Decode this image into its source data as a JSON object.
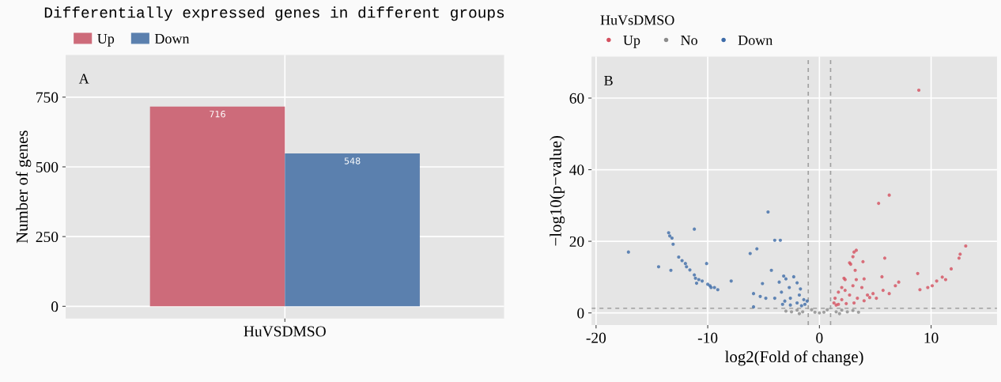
{
  "chart_data": [
    {
      "type": "bar",
      "title": "Differentially expressed genes in different groups",
      "ylabel": "Number of genes",
      "categories": [
        "HuVSDMSO"
      ],
      "series": [
        {
          "name": "Up",
          "color": "#cd6b7a",
          "values": [
            716
          ]
        },
        {
          "name": "Down",
          "color": "#5b80ae",
          "values": [
            548
          ]
        }
      ],
      "data_labels": true,
      "ylim": [
        -44,
        901
      ],
      "yticks": [
        0,
        250,
        500,
        750
      ],
      "grid": true,
      "legend": "top",
      "annotations": [
        "A"
      ]
    },
    {
      "type": "scatter",
      "xlabel": "log2(Fold of change)",
      "ylabel": "−log10(p−value)",
      "legend_title": "HuVsDMSO",
      "series": [
        {
          "name": "Up",
          "color": "#d4505f",
          "x": [
            8.9,
            6.25,
            5.3,
            5.85,
            3.3,
            3.1,
            3.0,
            2.7,
            2.8,
            3.9,
            3.2,
            2.2,
            2.3,
            3.3,
            4.0,
            2.0,
            3.0,
            3.8,
            1.7,
            2.3,
            1.4,
            2.0,
            2.7,
            3.4,
            4.3,
            4.8,
            5.6,
            5.7,
            6.25,
            7.1,
            1.3,
            1.7,
            2.4,
            3.1,
            4.0,
            5.1,
            1.5,
            8.8,
            9.0,
            9.7,
            10.1,
            10.5,
            11.0,
            11.3,
            11.8,
            12.5,
            12.6,
            13.1,
            6.8,
            4.5
          ],
          "values": [
            62.2,
            32.9,
            30.6,
            15.3,
            17.5,
            17.0,
            15.7,
            14.0,
            13.6,
            14.3,
            11.9,
            9.7,
            9.3,
            9.3,
            9.5,
            7.1,
            7.6,
            7.1,
            5.8,
            6.3,
            4.1,
            3.7,
            5.0,
            4.1,
            5.0,
            5.4,
            10.1,
            6.3,
            5.4,
            8.6,
            2.8,
            2.4,
            2.6,
            2.8,
            3.4,
            4.1,
            2.2,
            11.0,
            6.5,
            7.1,
            7.6,
            8.9,
            10.0,
            9.3,
            12.3,
            15.3,
            16.4,
            18.7,
            7.6,
            4.3
          ]
        },
        {
          "name": "No",
          "color": "#8c8c8c",
          "x": [
            0,
            0.4,
            -0.4,
            0.7,
            -0.7,
            1.5,
            -1.5,
            2.0,
            -2.0,
            2.5,
            -2.5,
            3.0,
            -3.0,
            3.5,
            1.8,
            -1.8
          ],
          "values": [
            0,
            0.2,
            0.2,
            0.9,
            0.9,
            0.3,
            0.3,
            0.8,
            0.8,
            0.3,
            0.3,
            0.7,
            0.5,
            0.2,
            -0.2,
            -0.2
          ]
        },
        {
          "name": "Down",
          "color": "#3d6ba8",
          "x": [
            -17.1,
            -14.4,
            -13.3,
            -13.5,
            -13.4,
            -13.2,
            -13.1,
            -11.2,
            -12.6,
            -12.3,
            -12.0,
            -11.9,
            -11.6,
            -11.2,
            -11.1,
            -11.0,
            -10.8,
            -10.5,
            -10.1,
            -10.0,
            -9.8,
            -9.7,
            -9.4,
            -9.1,
            -7.9,
            -5.9,
            -6.2,
            -5.6,
            -5.9,
            -5.1,
            -5.3,
            -4.8,
            -4.6,
            -4.0,
            -3.5,
            -4.3,
            -3.2,
            -3.6,
            -3.0,
            -2.3,
            -4.0,
            -3.4,
            -2.7,
            -2.0,
            -1.7,
            -3.1,
            -2.6,
            -1.8,
            -1.4,
            -1.3,
            -2.6,
            -2.0,
            -1.6,
            -3.3,
            -1.1
          ],
          "values": [
            17.0,
            12.9,
            11.9,
            22.4,
            21.5,
            20.9,
            19.2,
            23.4,
            15.6,
            14.6,
            13.8,
            12.9,
            12.0,
            10.6,
            9.7,
            8.3,
            9.3,
            8.9,
            13.8,
            8.0,
            7.6,
            7.1,
            7.1,
            6.5,
            8.9,
            5.4,
            16.6,
            17.9,
            1.7,
            8.2,
            4.6,
            4.1,
            28.2,
            20.3,
            20.3,
            11.9,
            10.3,
            8.6,
            9.5,
            10.1,
            4.1,
            5.8,
            7.1,
            8.4,
            6.7,
            3.3,
            4.1,
            5.0,
            3.7,
            2.4,
            2.2,
            2.8,
            2.0,
            2.4,
            3.3
          ]
        }
      ],
      "xlim": [
        -20.4,
        15.9
      ],
      "ylim": [
        -3.4,
        71.6
      ],
      "xticks": [
        -20,
        -10,
        0,
        10
      ],
      "yticks": [
        0,
        20,
        40,
        60
      ],
      "grid": true,
      "legend": "top",
      "marker": "circle",
      "ref_lines": [
        {
          "axis": "x",
          "value": -1,
          "color": "#a0a0a0",
          "line_style": "dashed"
        },
        {
          "axis": "x",
          "value": 1,
          "color": "#a0a0a0",
          "line_style": "dashed"
        },
        {
          "axis": "y",
          "value": 1.3,
          "color": "#a0a0a0",
          "line_style": "dashed"
        }
      ],
      "annotations": [
        "B"
      ]
    }
  ]
}
